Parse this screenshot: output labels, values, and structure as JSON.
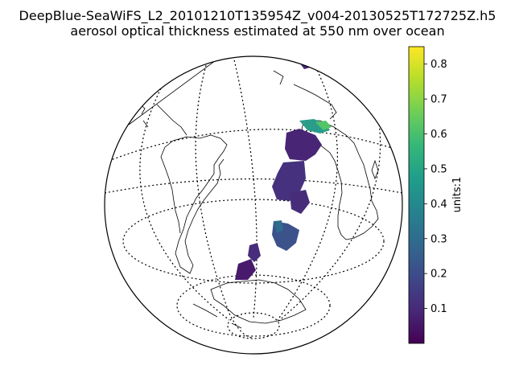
{
  "title": {
    "line1": "DeepBlue-SeaWiFS_L2_20101210T135954Z_v004-20130525T172725Z.h5",
    "line2": "aerosol optical thickness estimated at 550 nm over ocean"
  },
  "colorbar": {
    "label": "units:1",
    "range": [
      0.0,
      0.85
    ],
    "colormap": "viridis",
    "ticks": [
      {
        "value": 0.1,
        "label": "0.1"
      },
      {
        "value": 0.2,
        "label": "0.2"
      },
      {
        "value": 0.3,
        "label": "0.3"
      },
      {
        "value": 0.4,
        "label": "0.4"
      },
      {
        "value": 0.5,
        "label": "0.5"
      },
      {
        "value": 0.6,
        "label": "0.6"
      },
      {
        "value": 0.7,
        "label": "0.7"
      },
      {
        "value": 0.8,
        "label": "0.8"
      }
    ],
    "stops": [
      "#440154",
      "#482878",
      "#3e4989",
      "#31688e",
      "#26828e",
      "#1f9e89",
      "#35b779",
      "#6ece58",
      "#b5de2b",
      "#fde725"
    ]
  },
  "map": {
    "projection": "orthographic",
    "graticule_style": "dotted",
    "coastline_color": "#000000"
  }
}
